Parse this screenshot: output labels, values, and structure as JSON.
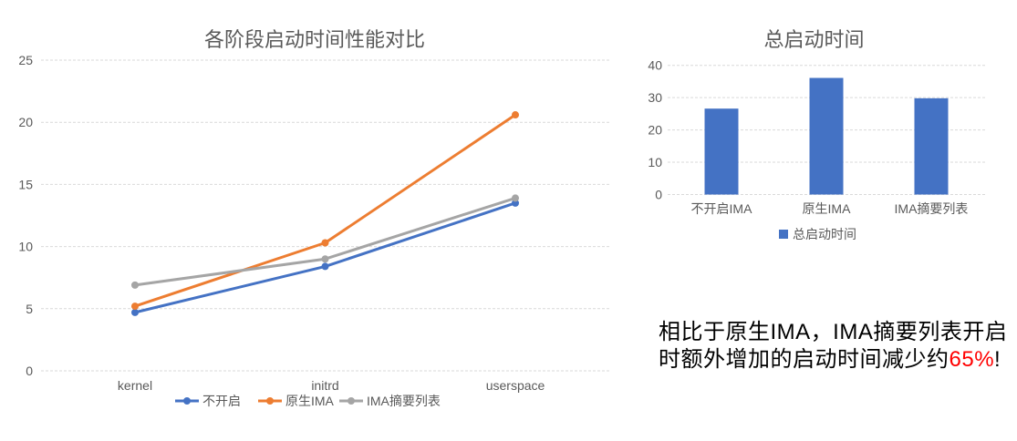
{
  "canvas": {
    "background": "#FFFFFF"
  },
  "colors": {
    "series_blue": "#4472C4",
    "series_orange": "#ED7D31",
    "series_gray": "#A5A5A5",
    "gridline": "#D9D9D9",
    "axis_text": "#595959",
    "title_text": "#595959",
    "annotation_text": "#000000",
    "highlight_red": "#FF0000"
  },
  "chart_data": [
    {
      "type": "line",
      "title": "各阶段启动时间性能对比",
      "categories": [
        "kernel",
        "initrd",
        "userspace"
      ],
      "series": [
        {
          "name": "不开启",
          "color": "#4472C4",
          "values": [
            4.7,
            8.4,
            13.5
          ]
        },
        {
          "name": "原生IMA",
          "color": "#ED7D31",
          "values": [
            5.2,
            10.3,
            20.6
          ]
        },
        {
          "name": "IMA摘要列表",
          "color": "#A5A5A5",
          "values": [
            6.9,
            9.0,
            13.9
          ]
        }
      ],
      "ylim": [
        0,
        25
      ],
      "yticks": [
        0,
        5,
        10,
        15,
        20,
        25
      ],
      "grid": true,
      "legend_position": "bottom",
      "marker": "circle"
    },
    {
      "type": "bar",
      "title": "总启动时间",
      "categories": [
        "不开启IMA",
        "原生IMA",
        "IMA摘要列表"
      ],
      "series": [
        {
          "name": "总启动时间",
          "color": "#4472C4",
          "values": [
            26.6,
            36.1,
            29.8
          ]
        }
      ],
      "ylim": [
        0,
        40
      ],
      "yticks": [
        0,
        10,
        20,
        30,
        40
      ],
      "grid": true,
      "legend_position": "bottom"
    }
  ],
  "annotation": {
    "line1": "相比于原生IMA，IMA摘要列表开启",
    "line2_prefix": "时额外增加的启动时间减少约",
    "highlight": "65%",
    "suffix": "!"
  }
}
